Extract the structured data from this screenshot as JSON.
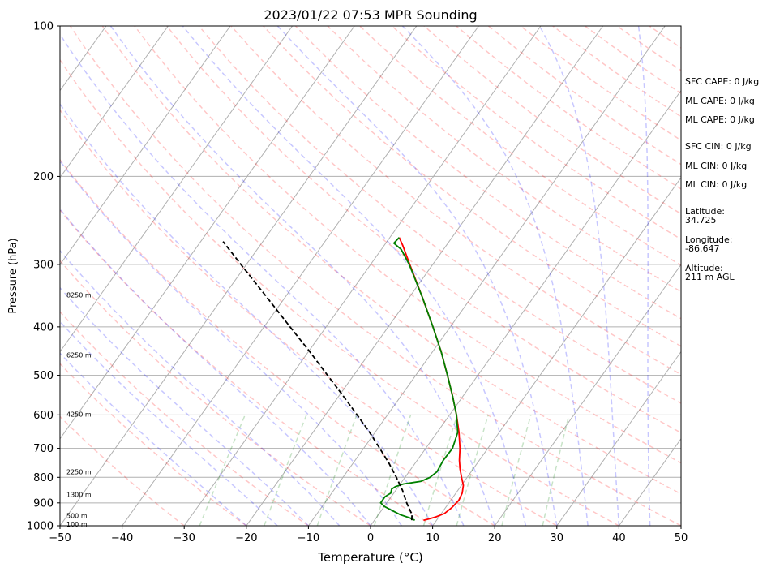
{
  "chart_data": {
    "type": "line",
    "title": "2023/01/22 07:53 MPR Sounding",
    "xlabel": "Temperature (°C)",
    "ylabel": "Pressure (hPa)",
    "xlim": [
      -50,
      50
    ],
    "ylim": [
      1000,
      100
    ],
    "y_scale": "log",
    "grid": true,
    "x_ticks": [
      "−50",
      "−40",
      "−30",
      "−20",
      "−10",
      "0",
      "10",
      "20",
      "30",
      "40",
      "50"
    ],
    "y_ticks": [
      "100",
      "200",
      "300",
      "400",
      "500",
      "600",
      "700",
      "800",
      "900",
      "1000"
    ],
    "x_tick_values": [
      -50,
      -40,
      -30,
      -20,
      -10,
      0,
      10,
      20,
      30,
      40,
      50
    ],
    "y_tick_values": [
      100,
      200,
      300,
      400,
      500,
      600,
      700,
      800,
      900,
      1000
    ],
    "height_labels": [
      {
        "text": "8250 m",
        "p": 345
      },
      {
        "text": "6250 m",
        "p": 455
      },
      {
        "text": "4250 m",
        "p": 598
      },
      {
        "text": "2250 m",
        "p": 780
      },
      {
        "text": "1300 m",
        "p": 866
      },
      {
        "text": "500 m",
        "p": 955
      },
      {
        "text": "100 m",
        "p": 992
      }
    ],
    "series": [
      {
        "color": "#ff0000",
        "line": "solid",
        "p": [
          975,
          970,
          960,
          945,
          920,
          890,
          860,
          830,
          800,
          770,
          740,
          700,
          650,
          600,
          550,
          500,
          450,
          400,
          350,
          300,
          275,
          265
        ],
        "t": [
          7.9,
          8.5,
          9.5,
          10.5,
          11.0,
          11.3,
          11.0,
          10.3,
          9.1,
          7.9,
          6.8,
          5.5,
          3.5,
          1.1,
          -1.7,
          -4.9,
          -8.5,
          -12.8,
          -17.8,
          -23.7,
          -27.0,
          -28.5
        ]
      },
      {
        "color": "#008000",
        "line": "solid",
        "p": [
          975,
          965,
          950,
          930,
          915,
          900,
          890,
          875,
          860,
          845,
          835,
          825,
          815,
          800,
          780,
          740,
          700,
          650,
          600,
          550,
          500,
          450,
          400,
          350,
          300,
          280,
          272,
          265
        ],
        "t": [
          6.5,
          5.5,
          3.5,
          1.5,
          0.0,
          -1.0,
          -1.0,
          -1.0,
          -0.5,
          -0.8,
          -0.5,
          0.5,
          3.0,
          4.0,
          4.5,
          4.2,
          4.3,
          3.3,
          1.1,
          -1.7,
          -4.9,
          -8.5,
          -12.8,
          -17.8,
          -23.8,
          -26.8,
          -28.7,
          -28.5
        ]
      },
      {
        "color": "#000000",
        "line": "dashed",
        "p": [
          975,
          950,
          900,
          850,
          800,
          750,
          700,
          650,
          600,
          550,
          500,
          450,
          400,
          350,
          300,
          270
        ],
        "t": [
          6.0,
          5.4,
          3.2,
          1.1,
          -1.4,
          -4.2,
          -7.4,
          -10.9,
          -14.9,
          -19.3,
          -24.2,
          -29.6,
          -35.8,
          -42.8,
          -50.9,
          -56.4
        ]
      }
    ]
  },
  "side_panel": {
    "sfc_cape": "SFC CAPE: 0 J/kg",
    "ml_cape_1": "ML CAPE: 0 J/kg",
    "ml_cape_2": "ML CAPE: 0 J/kg",
    "sfc_cin": "SFC CIN: 0 J/kg",
    "ml_cin_1": "ML CIN: 0 J/kg",
    "ml_cin_2": "ML CIN: 0 J/kg",
    "latitude_label": "Latitude:",
    "latitude_value": "34.725",
    "longitude_label": "Longitude:",
    "longitude_value": "-86.647",
    "altitude_label": "Altitude:",
    "altitude_value": "211 m AGL"
  }
}
